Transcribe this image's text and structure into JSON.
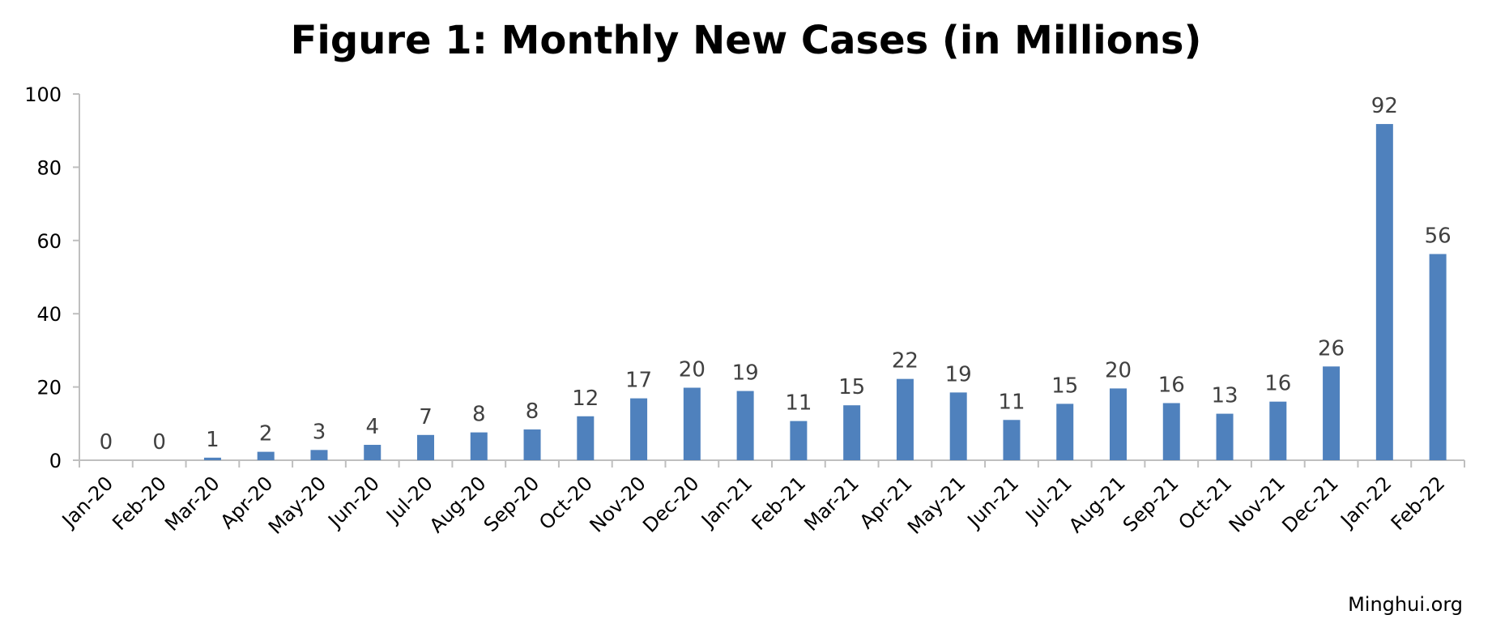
{
  "chart_data": {
    "type": "bar",
    "title": "Figure 1: Monthly New Cases (in Millions)",
    "xlabel": "",
    "ylabel": "",
    "ylim": [
      0,
      100
    ],
    "yticks": [
      "0",
      "20",
      "40",
      "60",
      "80",
      "100"
    ],
    "grid": false,
    "legend": "none",
    "bar_color": "#4f81bd",
    "categories": [
      "Jan-20",
      "Feb-20",
      "Mar-20",
      "Apr-20",
      "May-20",
      "Jun-20",
      "Jul-20",
      "Aug-20",
      "Sep-20",
      "Oct-20",
      "Nov-20",
      "Dec-20",
      "Jan-21",
      "Feb-21",
      "Mar-21",
      "Apr-21",
      "May-21",
      "Jun-21",
      "Jul-21",
      "Aug-21",
      "Sep-21",
      "Oct-21",
      "Nov-21",
      "Dec-21",
      "Jan-22",
      "Feb-22"
    ],
    "values": [
      0.0,
      0.0,
      0.7,
      2.3,
      2.8,
      4.2,
      6.9,
      7.6,
      8.4,
      12.0,
      16.9,
      19.8,
      18.9,
      10.7,
      15.0,
      22.2,
      18.5,
      11.0,
      15.4,
      19.6,
      15.6,
      12.7,
      16.0,
      25.6,
      91.8,
      56.3
    ],
    "data_labels": [
      "0",
      "0",
      "1",
      "2",
      "3",
      "4",
      "7",
      "8",
      "8",
      "12",
      "17",
      "20",
      "19",
      "11",
      "15",
      "22",
      "19",
      "11",
      "15",
      "20",
      "16",
      "13",
      "16",
      "26",
      "92",
      "56"
    ]
  },
  "footer": {
    "source": "Minghui.org"
  }
}
